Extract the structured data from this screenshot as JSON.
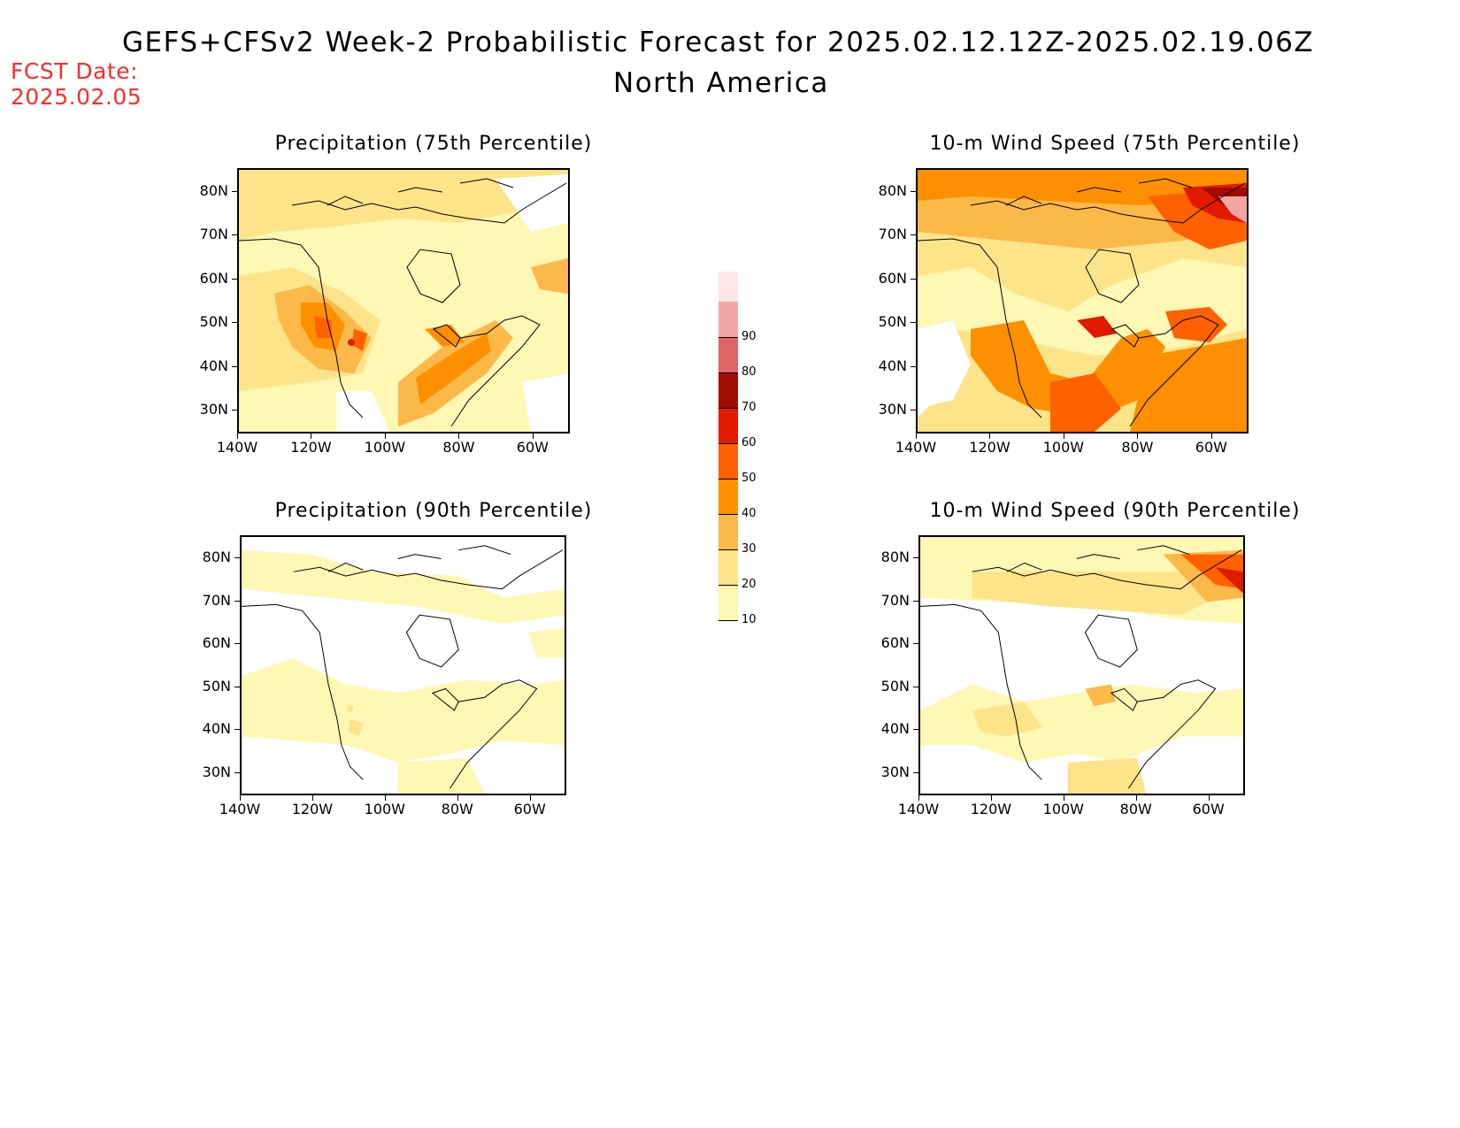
{
  "header": {
    "title": "GEFS+CFSv2 Week-2 Probabilistic Forecast for 2025.02.12.12Z-2025.02.19.06Z",
    "region": "North America",
    "fcst_label": "FCST Date:",
    "fcst_date": "2025.02.05"
  },
  "axes": {
    "lat_labels": [
      "80N",
      "70N",
      "60N",
      "50N",
      "40N",
      "30N"
    ],
    "lon_labels": [
      "140W",
      "120W",
      "100W",
      "80W",
      "60W"
    ]
  },
  "panels": [
    {
      "title": "Precipitation (75th Percentile)",
      "variable": "precipitation",
      "percentile": 75
    },
    {
      "title": "10-m Wind Speed (75th Percentile)",
      "variable": "10-m wind speed",
      "percentile": 75
    },
    {
      "title": "Precipitation (90th Percentile)",
      "variable": "precipitation",
      "percentile": 90
    },
    {
      "title": "10-m Wind Speed (90th Percentile)",
      "variable": "10-m wind speed",
      "percentile": 90
    }
  ],
  "colorbar": {
    "levels": [
      "10",
      "20",
      "30",
      "40",
      "50",
      "60",
      "70",
      "80",
      "90"
    ],
    "colors": [
      "#fff7b3",
      "#fde48a",
      "#fdb84a",
      "#fe9000",
      "#ff6100",
      "#e11a00",
      "#a10c00",
      "#de6466",
      "#f3a5a5",
      "#fde6e6"
    ]
  }
}
